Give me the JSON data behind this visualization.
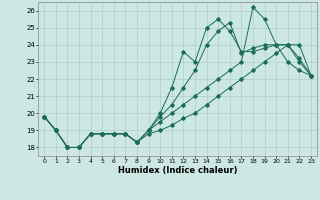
{
  "xlabel": "Humidex (Indice chaleur)",
  "xlim": [
    -0.5,
    23.5
  ],
  "ylim": [
    17.5,
    26.5
  ],
  "yticks": [
    18,
    19,
    20,
    21,
    22,
    23,
    24,
    25,
    26
  ],
  "xticks": [
    0,
    1,
    2,
    3,
    4,
    5,
    6,
    7,
    8,
    9,
    10,
    11,
    12,
    13,
    14,
    15,
    16,
    17,
    18,
    19,
    20,
    21,
    22,
    23
  ],
  "bg_color": "#cde8e2",
  "grid_color": "#aecfc8",
  "line_color": "#1a6b5a",
  "series": [
    {
      "x": [
        0,
        1,
        2,
        3,
        4,
        5,
        6,
        7,
        8,
        9,
        10,
        11,
        12,
        13,
        14,
        15,
        16,
        17,
        18,
        19,
        20,
        21,
        22,
        23
      ],
      "y": [
        19.8,
        19.0,
        18.0,
        18.0,
        18.8,
        18.8,
        18.8,
        18.8,
        18.3,
        19.0,
        20.0,
        21.5,
        23.6,
        23.0,
        25.0,
        25.5,
        24.8,
        23.6,
        23.6,
        23.8,
        24.0,
        24.0,
        23.2,
        22.2
      ]
    },
    {
      "x": [
        0,
        1,
        2,
        3,
        4,
        5,
        6,
        7,
        8,
        9,
        10,
        11,
        12,
        13,
        14,
        15,
        16,
        17,
        18,
        19,
        20,
        21,
        22,
        23
      ],
      "y": [
        19.8,
        19.0,
        18.0,
        18.0,
        18.8,
        18.8,
        18.8,
        18.8,
        18.3,
        19.0,
        19.8,
        20.5,
        21.5,
        22.5,
        24.0,
        24.8,
        25.3,
        23.5,
        23.8,
        24.0,
        24.0,
        24.0,
        23.0,
        22.2
      ]
    },
    {
      "x": [
        0,
        1,
        2,
        3,
        4,
        5,
        6,
        7,
        8,
        9,
        10,
        11,
        12,
        13,
        14,
        15,
        16,
        17,
        18,
        19,
        20,
        21,
        22,
        23
      ],
      "y": [
        19.8,
        19.0,
        18.0,
        18.0,
        18.8,
        18.8,
        18.8,
        18.8,
        18.3,
        19.0,
        19.5,
        20.0,
        20.5,
        21.0,
        21.5,
        22.0,
        22.5,
        23.0,
        26.2,
        25.5,
        24.0,
        23.0,
        22.5,
        22.2
      ]
    },
    {
      "x": [
        0,
        1,
        2,
        3,
        4,
        5,
        6,
        7,
        8,
        9,
        10,
        11,
        12,
        13,
        14,
        15,
        16,
        17,
        18,
        19,
        20,
        21,
        22,
        23
      ],
      "y": [
        19.8,
        19.0,
        18.0,
        18.0,
        18.8,
        18.8,
        18.8,
        18.8,
        18.3,
        18.8,
        19.0,
        19.3,
        19.7,
        20.0,
        20.5,
        21.0,
        21.5,
        22.0,
        22.5,
        23.0,
        23.5,
        24.0,
        24.0,
        22.2
      ]
    }
  ]
}
